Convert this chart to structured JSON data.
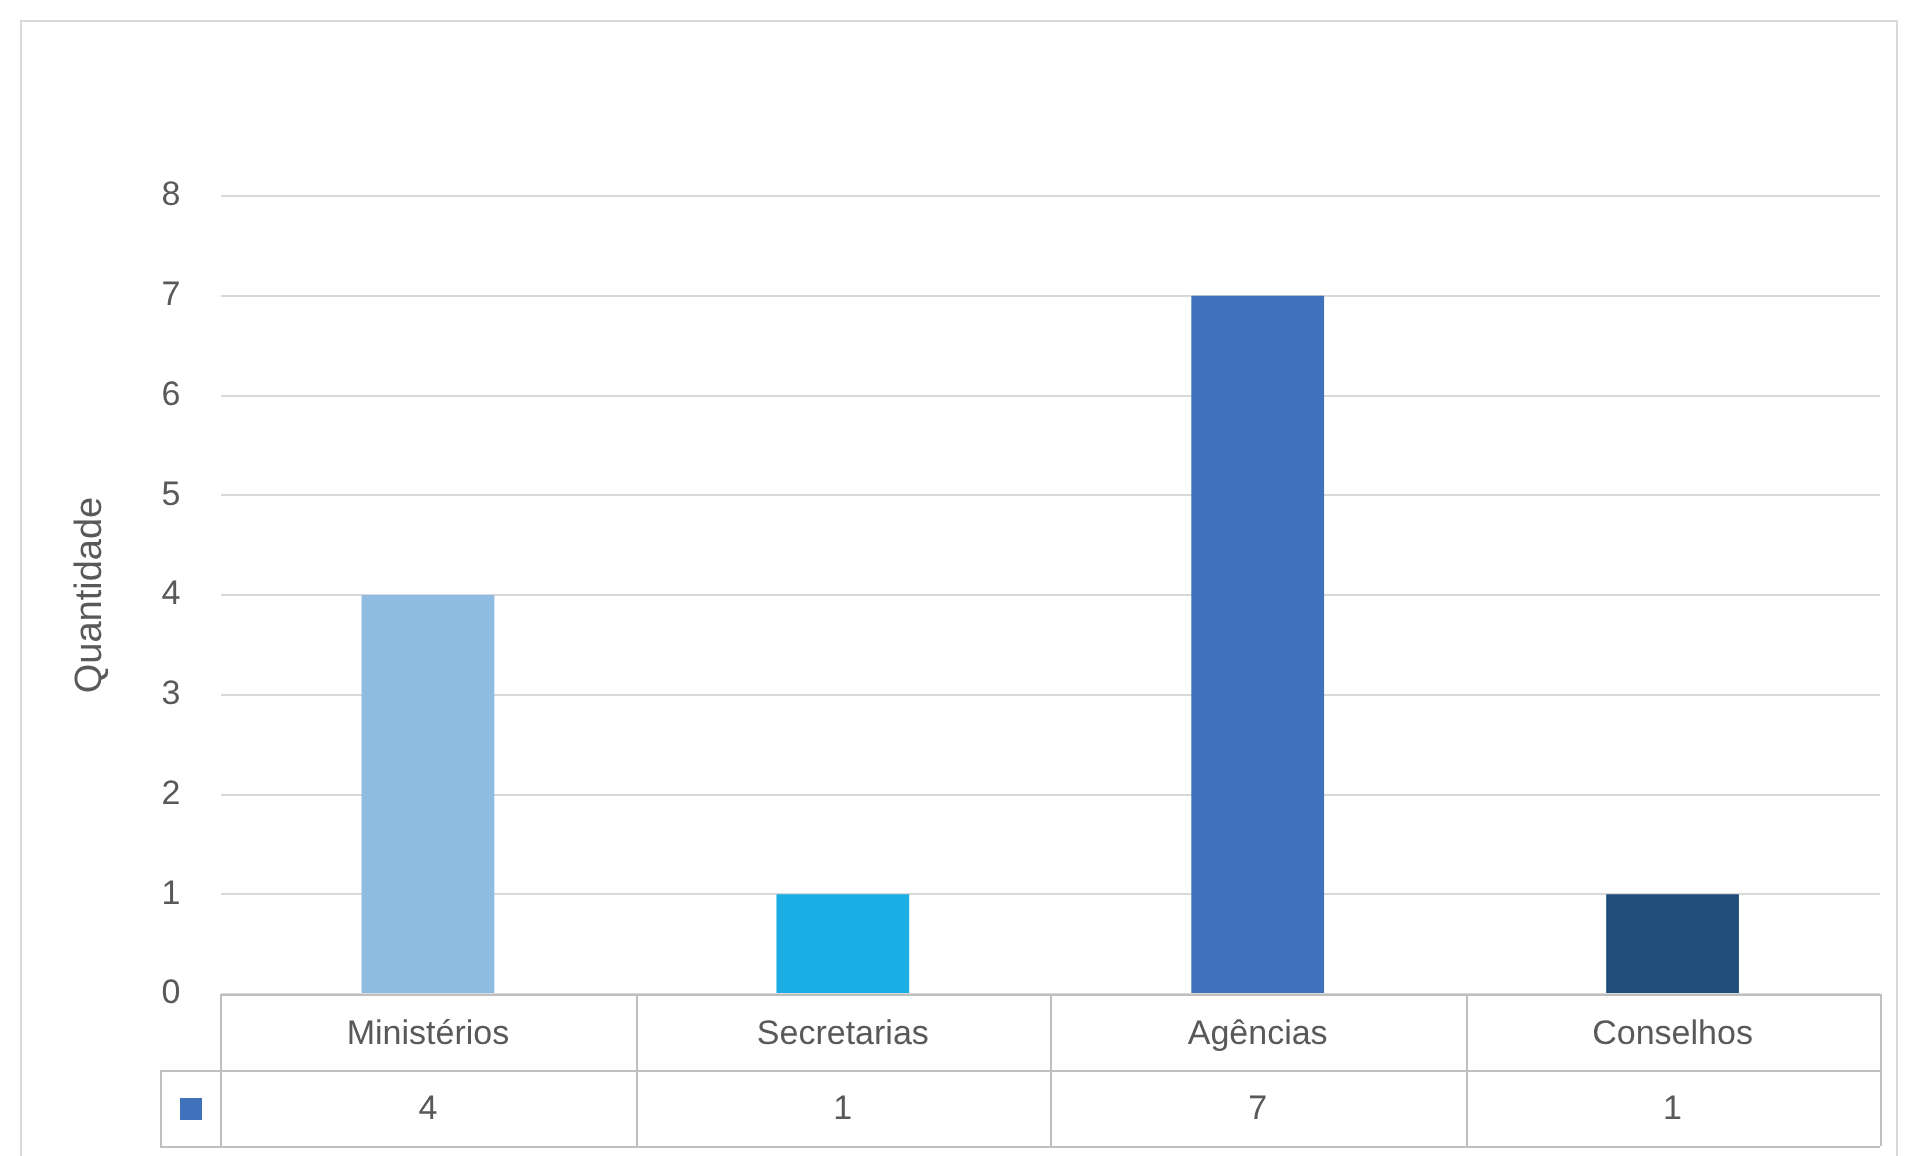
{
  "chart_data": {
    "type": "bar",
    "ylabel": "Quantidade",
    "categories": [
      "Ministérios",
      "Secretarias",
      "Agências",
      "Conselhos"
    ],
    "values": [
      4,
      1,
      7,
      1
    ],
    "colors": [
      "#8fbce3",
      "#1aaee5",
      "#3f72bb",
      "#1f4e79"
    ],
    "ylim": [
      0,
      8
    ],
    "yticks": [
      0,
      1,
      2,
      3,
      4,
      5,
      6,
      7,
      8
    ],
    "grid": "y",
    "data_labels": true
  }
}
